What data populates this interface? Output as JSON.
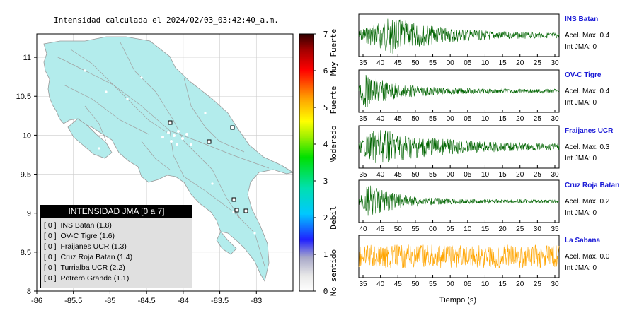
{
  "map": {
    "title": "Intensidad calculada el 2024/02/03_03:42:40_a.m.",
    "x_ticks": [
      "-86",
      "-85.5",
      "-85",
      "-84.5",
      "-84",
      "-83.5",
      "-83"
    ],
    "y_ticks": [
      "8",
      "8.5",
      "9",
      "9.5",
      "10",
      "10.5",
      "11"
    ],
    "land_color": "#b3ecec",
    "station_markers": 6
  },
  "colorbar": {
    "ticks": [
      "0",
      "1",
      "2",
      "3",
      "4",
      "5",
      "6",
      "7"
    ],
    "labels": [
      "No sentido",
      "Debil",
      "Moderado",
      "Fuerte",
      "Muy Fuerte"
    ]
  },
  "legend": {
    "title": "INTENSIDAD JMA [0 a 7]",
    "items": [
      {
        "idx": "[ 0 ]",
        "label": "INS Batan (1.8)"
      },
      {
        "idx": "[ 0 ]",
        "label": "OV-C Tigre (1.6)"
      },
      {
        "idx": "[ 0 ]",
        "label": "Fraijanes UCR (1.3)"
      },
      {
        "idx": "[ 0 ]",
        "label": "Cruz Roja Batan (1.4)"
      },
      {
        "idx": "[ 0 ]",
        "label": "Turrialba UCR (2.2)"
      },
      {
        "idx": "[ 0 ]",
        "label": "Potrero Grande (1.1)"
      }
    ]
  },
  "waveforms": {
    "xlabel": "Tiempo (s)",
    "stations": [
      {
        "name": "INS Batan",
        "accel": "Acel. Max. 0.4",
        "jma": "Int JMA: 0",
        "color": "#006400",
        "ticks": [
          "35",
          "40",
          "45",
          "50",
          "55",
          "00",
          "05",
          "10",
          "15",
          "20",
          "25",
          "30"
        ]
      },
      {
        "name": "OV-C Tigre",
        "accel": "Acel. Max. 0.4",
        "jma": "Int JMA: 0",
        "color": "#006400",
        "ticks": [
          "35",
          "40",
          "45",
          "50",
          "55",
          "00",
          "05",
          "10",
          "15",
          "20",
          "25",
          "30"
        ]
      },
      {
        "name": "Fraijanes UCR",
        "accel": "Acel. Max. 0.3",
        "jma": "Int JMA: 0",
        "color": "#006400",
        "ticks": [
          "35",
          "40",
          "45",
          "50",
          "55",
          "00",
          "05",
          "10",
          "15",
          "20",
          "25",
          "30"
        ]
      },
      {
        "name": "Cruz Roja Batan",
        "accel": "Acel. Max. 0.2",
        "jma": "Int JMA: 0",
        "color": "#006400",
        "ticks": [
          "40",
          "45",
          "50",
          "55",
          "00",
          "05",
          "10",
          "15",
          "20",
          "25",
          "30",
          "35"
        ]
      },
      {
        "name": "La Sabana",
        "accel": "Acel. Max. 0.0",
        "jma": "Int JMA: 0",
        "color": "#ffa500",
        "ticks": [
          "35",
          "40",
          "45",
          "50",
          "55",
          "00",
          "05",
          "10",
          "15",
          "20",
          "25",
          "30"
        ]
      }
    ]
  },
  "chart_data": [
    {
      "type": "heatmap",
      "title": "Intensidad calculada el 2024/02/03_03:42:40_a.m.",
      "xlim": [
        -86,
        -82.5
      ],
      "ylim": [
        8,
        11.3
      ],
      "colorbar_range": [
        0,
        7
      ],
      "legend_placement": "bottom-left",
      "grid": true
    },
    {
      "type": "line",
      "xlabel": "Tiempo (s)",
      "series": [
        {
          "name": "INS Batan",
          "peak_accel": 0.4,
          "jma": 0
        },
        {
          "name": "OV-C Tigre",
          "peak_accel": 0.4,
          "jma": 0
        },
        {
          "name": "Fraijanes UCR",
          "peak_accel": 0.3,
          "jma": 0
        },
        {
          "name": "Cruz Roja Batan",
          "peak_accel": 0.2,
          "jma": 0
        },
        {
          "name": "La Sabana",
          "peak_accel": 0.0,
          "jma": 0
        }
      ]
    }
  ]
}
